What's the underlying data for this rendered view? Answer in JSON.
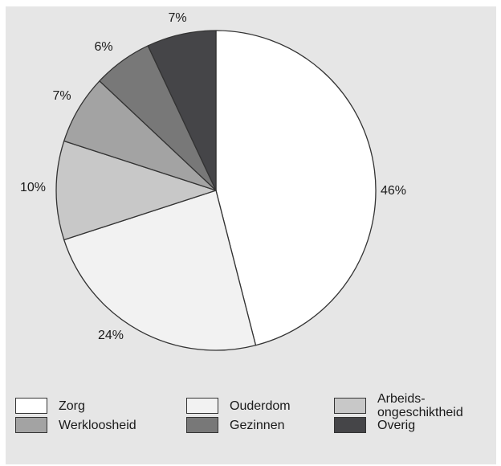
{
  "chart_data": {
    "type": "pie",
    "title": "",
    "slices": [
      {
        "label": "Zorg",
        "value": 46,
        "value_label": "46%",
        "color": "#ffffff"
      },
      {
        "label": "Ouderdom",
        "value": 24,
        "value_label": "24%",
        "color": "#f2f2f2"
      },
      {
        "label": "Arbeids-\nongeschiktheid",
        "value": 10,
        "value_label": "10%",
        "color": "#c8c8c8"
      },
      {
        "label": "Werkloosheid",
        "value": 7,
        "value_label": "7%",
        "color": "#a3a3a3"
      },
      {
        "label": "Gezinnen",
        "value": 6,
        "value_label": "6%",
        "color": "#787878"
      },
      {
        "label": "Overig",
        "value": 7,
        "value_label": "7%",
        "color": "#454548"
      }
    ],
    "start_angle_deg": 0,
    "direction": "clockwise",
    "legend_position": "bottom",
    "background_color": "#e6e6e6",
    "outline_color": "#333333"
  }
}
